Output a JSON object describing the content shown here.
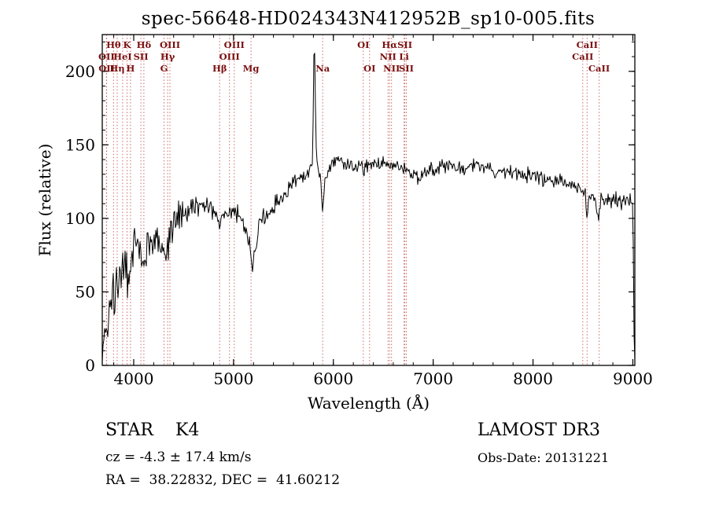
{
  "footer": {
    "class_label": "STAR    K4",
    "survey": "LAMOST DR3",
    "cz": "cz = -4.3 ± 17.4 km/s",
    "obs_date": "Obs-Date: 20131221",
    "coords": "RA =  38.22832, DEC =  41.60212"
  },
  "chart_data": {
    "type": "line",
    "title": "spec-56648-HD024343N412952B_sp10-005.fits",
    "xlabel": "Wavelength (Å)",
    "ylabel": "Flux (relative)",
    "xlim": [
      3685,
      9020
    ],
    "ylim": [
      0,
      225
    ],
    "xticks": [
      4000,
      5000,
      6000,
      7000,
      8000,
      9000
    ],
    "yticks": [
      0,
      50,
      100,
      150,
      200
    ],
    "x_minor_step": 200,
    "y_minor_step": 10,
    "grid": false,
    "legend": "none",
    "line_color": "#000000",
    "spectral_line_color": "#c96a6a",
    "spectral_label_color": "#7a1010",
    "noise_seed": 20131221,
    "spectral_lines": [
      {
        "label": "OII",
        "wl": 3727,
        "row": 1
      },
      {
        "label": "OII",
        "wl": 3729,
        "row": 2
      },
      {
        "label": "Hθ",
        "wl": 3798,
        "row": 0
      },
      {
        "label": "Hη",
        "wl": 3835,
        "row": 2
      },
      {
        "label": "HeI",
        "wl": 3889,
        "row": 1
      },
      {
        "label": "K",
        "wl": 3933,
        "row": 0
      },
      {
        "label": "H",
        "wl": 3968,
        "row": 2
      },
      {
        "label": "SII",
        "wl": 4072,
        "row": 1
      },
      {
        "label": "Hδ",
        "wl": 4102,
        "row": 0
      },
      {
        "label": "G",
        "wl": 4304,
        "row": 2
      },
      {
        "label": "Hγ",
        "wl": 4340,
        "row": 1
      },
      {
        "label": "OIII",
        "wl": 4363,
        "row": 0
      },
      {
        "label": "Hβ",
        "wl": 4861,
        "row": 2
      },
      {
        "label": "OIII",
        "wl": 4959,
        "row": 1
      },
      {
        "label": "OIII",
        "wl": 5007,
        "row": 0
      },
      {
        "label": "Mg",
        "wl": 5175,
        "row": 2
      },
      {
        "label": "Na",
        "wl": 5893,
        "row": 2
      },
      {
        "label": "OI",
        "wl": 6300,
        "row": 0
      },
      {
        "label": "OI",
        "wl": 6363,
        "row": 2
      },
      {
        "label": "NII",
        "wl": 6548,
        "row": 1
      },
      {
        "label": "Hα",
        "wl": 6563,
        "row": 0
      },
      {
        "label": "NII",
        "wl": 6583,
        "row": 2
      },
      {
        "label": "Li",
        "wl": 6708,
        "row": 1
      },
      {
        "label": "SII",
        "wl": 6716,
        "row": 0
      },
      {
        "label": "SII",
        "wl": 6731,
        "row": 2
      },
      {
        "label": "CaII",
        "wl": 8498,
        "row": 1
      },
      {
        "label": "CaII",
        "wl": 8542,
        "row": 0
      },
      {
        "label": "CaII",
        "wl": 8662,
        "row": 2
      }
    ],
    "spectrum": [
      [
        3685,
        4,
        2
      ],
      [
        3695,
        22,
        14
      ],
      [
        3710,
        30,
        16
      ],
      [
        3730,
        25,
        16
      ],
      [
        3750,
        42,
        15
      ],
      [
        3770,
        35,
        14
      ],
      [
        3790,
        50,
        13
      ],
      [
        3810,
        46,
        13
      ],
      [
        3830,
        52,
        12
      ],
      [
        3850,
        48,
        12
      ],
      [
        3870,
        58,
        11
      ],
      [
        3890,
        64,
        11
      ],
      [
        3910,
        70,
        9
      ],
      [
        3933,
        58,
        10
      ],
      [
        3950,
        64,
        9
      ],
      [
        3970,
        70,
        9
      ],
      [
        3990,
        80,
        9
      ],
      [
        4010,
        84,
        9
      ],
      [
        4040,
        80,
        9
      ],
      [
        4070,
        76,
        9
      ],
      [
        4102,
        68,
        8
      ],
      [
        4130,
        80,
        8
      ],
      [
        4160,
        84,
        8
      ],
      [
        4200,
        87,
        8
      ],
      [
        4240,
        89,
        7
      ],
      [
        4280,
        84,
        7
      ],
      [
        4304,
        80,
        7
      ],
      [
        4340,
        80,
        7
      ],
      [
        4370,
        90,
        7
      ],
      [
        4410,
        97,
        6
      ],
      [
        4450,
        101,
        6
      ],
      [
        4500,
        104,
        6
      ],
      [
        4550,
        106,
        5
      ],
      [
        4600,
        109,
        5
      ],
      [
        4650,
        110,
        5
      ],
      [
        4700,
        108,
        5
      ],
      [
        4750,
        107,
        5
      ],
      [
        4800,
        105,
        5
      ],
      [
        4840,
        103,
        4
      ],
      [
        4861,
        94,
        4
      ],
      [
        4885,
        102,
        4
      ],
      [
        4930,
        104,
        4
      ],
      [
        4980,
        105,
        4
      ],
      [
        5030,
        103,
        4
      ],
      [
        5080,
        100,
        4
      ],
      [
        5140,
        90,
        5
      ],
      [
        5170,
        74,
        5
      ],
      [
        5195,
        68,
        4
      ],
      [
        5225,
        85,
        4
      ],
      [
        5260,
        95,
        4
      ],
      [
        5300,
        99,
        4
      ],
      [
        5350,
        104,
        4
      ],
      [
        5400,
        108,
        4
      ],
      [
        5450,
        112,
        4
      ],
      [
        5500,
        116,
        3
      ],
      [
        5550,
        120,
        3
      ],
      [
        5600,
        124,
        3
      ],
      [
        5650,
        127,
        3
      ],
      [
        5700,
        129,
        3
      ],
      [
        5750,
        131,
        3
      ],
      [
        5790,
        138,
        2
      ],
      [
        5798,
        170,
        1
      ],
      [
        5804,
        210,
        1
      ],
      [
        5810,
        223,
        0
      ],
      [
        5817,
        195,
        1
      ],
      [
        5826,
        150,
        1
      ],
      [
        5838,
        137,
        2
      ],
      [
        5852,
        133,
        2
      ],
      [
        5875,
        127,
        2
      ],
      [
        5889,
        104,
        1
      ],
      [
        5900,
        112,
        1
      ],
      [
        5915,
        124,
        2
      ],
      [
        5940,
        130,
        2
      ],
      [
        5980,
        136,
        3
      ],
      [
        6030,
        140,
        3
      ],
      [
        6080,
        139,
        3
      ],
      [
        6130,
        137,
        3
      ],
      [
        6180,
        136,
        3
      ],
      [
        6240,
        135,
        3
      ],
      [
        6300,
        134,
        3
      ],
      [
        6360,
        136,
        3
      ],
      [
        6420,
        138,
        3
      ],
      [
        6480,
        139,
        3
      ],
      [
        6530,
        138,
        3
      ],
      [
        6563,
        135,
        2
      ],
      [
        6610,
        137,
        3
      ],
      [
        6670,
        135,
        3
      ],
      [
        6730,
        133,
        3
      ],
      [
        6800,
        131,
        3
      ],
      [
        6860,
        127,
        3
      ],
      [
        6890,
        130,
        2
      ],
      [
        6950,
        132,
        3
      ],
      [
        7020,
        134,
        3
      ],
      [
        7090,
        136,
        3
      ],
      [
        7160,
        137,
        3
      ],
      [
        7230,
        135,
        3
      ],
      [
        7300,
        134,
        3
      ],
      [
        7370,
        135,
        3
      ],
      [
        7440,
        136,
        3
      ],
      [
        7510,
        136,
        3
      ],
      [
        7570,
        134,
        3
      ],
      [
        7620,
        129,
        2
      ],
      [
        7680,
        132,
        3
      ],
      [
        7740,
        133,
        3
      ],
      [
        7800,
        132,
        3
      ],
      [
        7860,
        131,
        3
      ],
      [
        7920,
        130,
        3
      ],
      [
        7980,
        129,
        3
      ],
      [
        8040,
        128,
        3
      ],
      [
        8100,
        127,
        3
      ],
      [
        8160,
        125,
        3
      ],
      [
        8220,
        124,
        3
      ],
      [
        8280,
        125,
        3
      ],
      [
        8340,
        124,
        3
      ],
      [
        8400,
        123,
        3
      ],
      [
        8460,
        121,
        3
      ],
      [
        8520,
        119,
        3
      ],
      [
        8540,
        100,
        1
      ],
      [
        8560,
        116,
        2
      ],
      [
        8620,
        116,
        3
      ],
      [
        8655,
        98,
        1
      ],
      [
        8680,
        113,
        3
      ],
      [
        8740,
        114,
        3
      ],
      [
        8800,
        112,
        4
      ],
      [
        8860,
        111,
        4
      ],
      [
        8920,
        112,
        4
      ],
      [
        8970,
        113,
        4
      ],
      [
        9000,
        110,
        4
      ],
      [
        9008,
        55,
        1
      ],
      [
        9014,
        4,
        1
      ]
    ]
  }
}
